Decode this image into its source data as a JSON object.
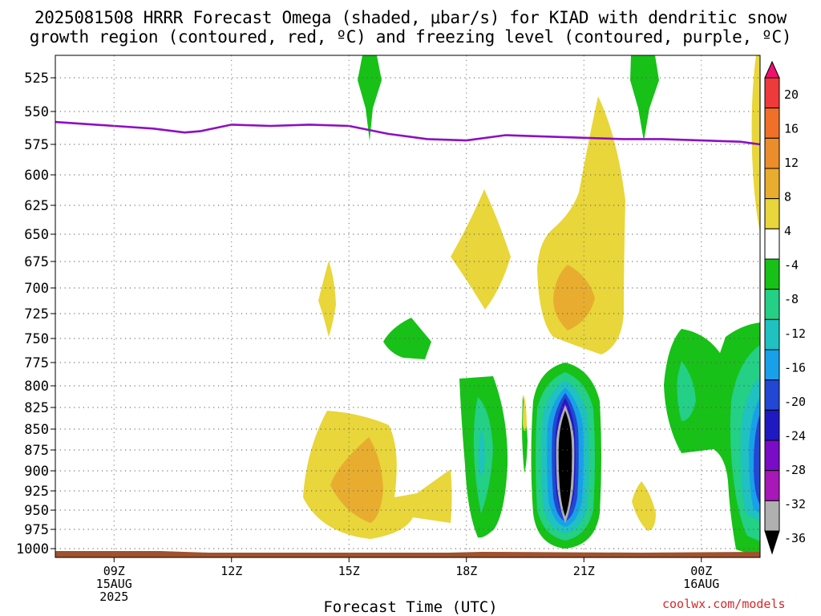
{
  "title_line1": "2025081508 HRRR Forecast Omega (shaded, μbar/s) for KIAD with dendritic snow",
  "title_line2": "growth region (contoured, red, ºC) and freezing level (contoured, purple, ºC)",
  "x_axis_title": "Forecast Time (UTC)",
  "credit": "coolwx.com/models",
  "chart_data": {
    "type": "heatmap",
    "title": "2025081508 HRRR Forecast Omega (shaded, μbar/s) for KIAD with dendritic snow growth region (contoured, red, ºC) and freezing level (contoured, purple, ºC)",
    "xlabel": "Forecast Time (UTC)",
    "ylabel": "",
    "x_range_hours": [
      7.5,
      25.5
    ],
    "y_range_hpa": [
      505,
      1010
    ],
    "y_scale": "pressure (reversed, approximately log)",
    "grid": true,
    "x_ticks": [
      {
        "hour": 9,
        "lines": [
          "09Z",
          "15AUG",
          "2025"
        ]
      },
      {
        "hour": 12,
        "lines": [
          "12Z"
        ]
      },
      {
        "hour": 15,
        "lines": [
          "15Z"
        ]
      },
      {
        "hour": 18,
        "lines": [
          "18Z"
        ]
      },
      {
        "hour": 21,
        "lines": [
          "21Z"
        ]
      },
      {
        "hour": 24,
        "lines": [
          "00Z",
          "16AUG"
        ]
      }
    ],
    "y_ticks": [
      525,
      550,
      575,
      600,
      625,
      650,
      675,
      700,
      725,
      750,
      775,
      800,
      825,
      850,
      875,
      900,
      925,
      950,
      975,
      1000
    ],
    "colorbar": {
      "ticks": [
        20,
        16,
        12,
        8,
        4,
        -4,
        -8,
        -12,
        -16,
        -20,
        -24,
        -28,
        -32,
        -36
      ],
      "colors": [
        "#f0106e",
        "#ee3a3a",
        "#f0702a",
        "#ec8d2c",
        "#e8ad2e",
        "#e8d63a",
        "#ffffff",
        "#17c117",
        "#24cf86",
        "#1fc1c1",
        "#18a0e9",
        "#2247d3",
        "#2019c2",
        "#7a0cc6",
        "#a817b8",
        "#b0b0b0",
        "#000000"
      ]
    },
    "freezing_level_hpa": [
      {
        "t": 7.5,
        "p": 558
      },
      {
        "t": 9,
        "p": 561
      },
      {
        "t": 10,
        "p": 563
      },
      {
        "t": 10.8,
        "p": 566
      },
      {
        "t": 11.2,
        "p": 565
      },
      {
        "t": 12,
        "p": 560
      },
      {
        "t": 13,
        "p": 561
      },
      {
        "t": 14,
        "p": 560
      },
      {
        "t": 15,
        "p": 561
      },
      {
        "t": 16,
        "p": 567
      },
      {
        "t": 17,
        "p": 571
      },
      {
        "t": 18,
        "p": 572
      },
      {
        "t": 19,
        "p": 568
      },
      {
        "t": 20,
        "p": 569
      },
      {
        "t": 21,
        "p": 570
      },
      {
        "t": 22,
        "p": 571
      },
      {
        "t": 23,
        "p": 571
      },
      {
        "t": 24,
        "p": 572
      },
      {
        "t": 25,
        "p": 573
      },
      {
        "t": 25.5,
        "p": 575
      }
    ],
    "omega_features": [
      {
        "name": "upward-core",
        "t": 21,
        "p_top": 825,
        "p_bottom": 960,
        "min_value": -36
      },
      {
        "name": "upward-ring",
        "t": 21,
        "p_top": 780,
        "p_bottom": 995,
        "value_range": [
          -32,
          -4
        ]
      },
      {
        "name": "upward-left",
        "t": 19,
        "p_top": 790,
        "p_bottom": 985,
        "min_value": -16
      },
      {
        "name": "upward-right",
        "t": 25,
        "p_top": 745,
        "p_bottom": 995,
        "min_value": -24
      },
      {
        "name": "upward-upper-1",
        "t": 16,
        "p_top": 505,
        "p_bottom": 570,
        "min_value": -8
      },
      {
        "name": "upward-upper-2",
        "t": 23,
        "p_top": 505,
        "p_bottom": 570,
        "min_value": -8
      },
      {
        "name": "upward-mid",
        "t": 17,
        "p_top": 735,
        "p_bottom": 770,
        "min_value": -8
      },
      {
        "name": "downward-tall",
        "t": 22,
        "p_top": 540,
        "p_bottom": 765,
        "max_value": 12
      },
      {
        "name": "downward-mid",
        "t": 19,
        "p_top": 625,
        "p_bottom": 740,
        "max_value": 8
      },
      {
        "name": "downward-low",
        "t": 15.5,
        "p_top": 830,
        "p_bottom": 975,
        "max_value": 12
      },
      {
        "name": "downward-small",
        "t": 15,
        "p_top": 680,
        "p_bottom": 740,
        "max_value": 8
      }
    ]
  }
}
